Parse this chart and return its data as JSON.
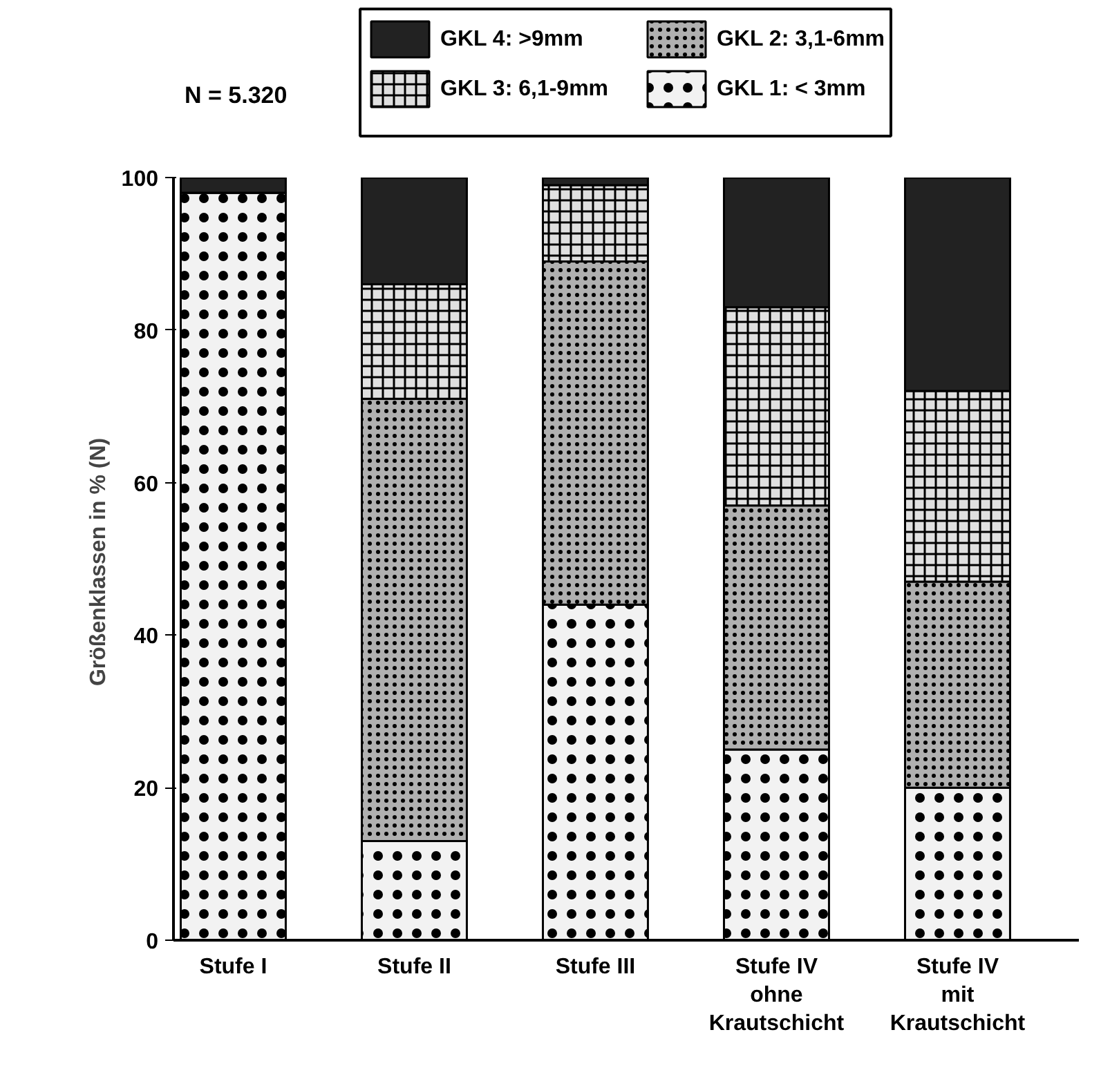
{
  "chart_data": {
    "type": "bar",
    "stacked": true,
    "ylabel": "Größenklassen in %  (N)",
    "categories": [
      "Stufe I",
      "Stufe II",
      "Stufe III",
      "Stufe IV\nohne\nKrautschicht",
      "Stufe IV\nmit\nKrautschicht"
    ],
    "series": [
      {
        "name": "GKL  1:  < 3mm",
        "color": "#f2f2f2",
        "values": [
          98,
          13,
          44,
          25,
          20
        ]
      },
      {
        "name": "GKL  2:   3,1-6mm",
        "color": "#b0b0b0",
        "values": [
          0,
          58,
          45,
          32,
          27
        ]
      },
      {
        "name": "GKL  3:   6,1-9mm",
        "color": "#e0e0e0",
        "values": [
          0,
          15,
          10,
          26,
          25
        ]
      },
      {
        "name": "GKL  4:  >9mm",
        "color": "#222222",
        "values": [
          2,
          14,
          1,
          17,
          28
        ]
      }
    ],
    "ylim": [
      0,
      100
    ],
    "yticks": [
      0,
      20,
      40,
      60,
      80,
      100
    ],
    "grid": false,
    "legend": "top",
    "annotations": [
      "N = 5.320"
    ]
  }
}
